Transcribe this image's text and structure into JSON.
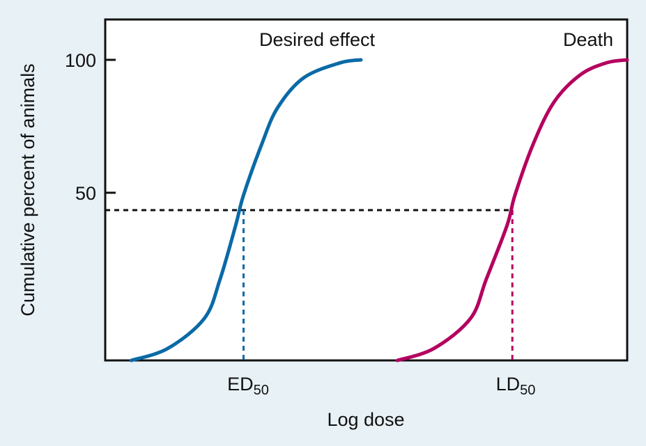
{
  "chart_data": {
    "type": "line",
    "xlabel": "Log dose",
    "ylabel": "Cumulative percent of animals",
    "yticks": [
      50,
      100
    ],
    "ylim": [
      0,
      100
    ],
    "xlim": [
      0,
      100
    ],
    "grid": false,
    "series": [
      {
        "name": "Desired effect",
        "color": "#0a6aa6",
        "points": [
          [
            5,
            0
          ],
          [
            12,
            4
          ],
          [
            19,
            14
          ],
          [
            22,
            27
          ],
          [
            25,
            45
          ],
          [
            26.5,
            55
          ],
          [
            30,
            72
          ],
          [
            33,
            84
          ],
          [
            38,
            94
          ],
          [
            45,
            99
          ],
          [
            49,
            100
          ]
        ]
      },
      {
        "name": "Death",
        "color": "#b4005f",
        "points": [
          [
            56,
            0
          ],
          [
            63,
            4
          ],
          [
            70,
            14
          ],
          [
            73,
            27
          ],
          [
            77,
            45
          ],
          [
            78.5,
            55
          ],
          [
            82,
            72
          ],
          [
            86,
            86
          ],
          [
            91,
            95
          ],
          [
            96,
            99
          ],
          [
            100,
            100
          ]
        ]
      }
    ],
    "reference_lines": {
      "y50": 50,
      "ed50_x": 26.5,
      "ld50_x": 78
    },
    "markers": [
      {
        "base": "ED",
        "sub": "50"
      },
      {
        "base": "LD",
        "sub": "50"
      }
    ]
  }
}
